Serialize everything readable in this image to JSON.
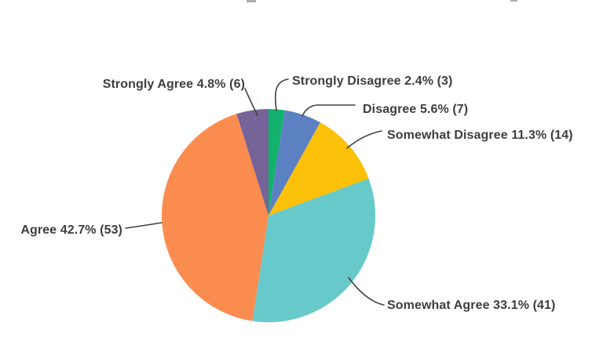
{
  "chart_data": {
    "type": "pie",
    "title": "",
    "legend_position": "none",
    "labels_style": "callout-leader-lines",
    "start_angle_deg": -90,
    "direction": "clockwise",
    "colors": {
      "label_text": "#3e3e40",
      "leader_line": "#414042",
      "background": "#ffffff"
    },
    "categories": [
      "Strongly Disagree",
      "Disagree",
      "Somewhat Disagree",
      "Somewhat Agree",
      "Agree",
      "Strongly Agree"
    ],
    "values": [
      2.4,
      5.6,
      11.3,
      33.1,
      42.7,
      4.8
    ],
    "counts": [
      3,
      7,
      14,
      41,
      53,
      6
    ],
    "segments": [
      {
        "key": "strongly-disagree",
        "label": "Strongly Disagree",
        "percent": "2.4%",
        "count": 3,
        "color": "#12b26e",
        "display": "Strongly Disagree 2.4% (3)"
      },
      {
        "key": "disagree",
        "label": "Disagree",
        "percent": "5.6%",
        "count": 7,
        "color": "#5b81c2",
        "display": "Disagree 5.6% (7)"
      },
      {
        "key": "somewhat-disagree",
        "label": "Somewhat Disagree",
        "percent": "11.3%",
        "count": 14,
        "color": "#fbc008",
        "display": "Somewhat Disagree 11.3% (14)"
      },
      {
        "key": "somewhat-agree",
        "label": "Somewhat Agree",
        "percent": "33.1%",
        "count": 41,
        "color": "#68c9ca",
        "display": "Somewhat Agree 33.1% (41)"
      },
      {
        "key": "agree",
        "label": "Agree",
        "percent": "42.7%",
        "count": 53,
        "color": "#fb8c50",
        "display": "Agree 42.7% (53)"
      },
      {
        "key": "strongly-agree",
        "label": "Strongly Agree",
        "percent": "4.8%",
        "count": 6,
        "color": "#766398",
        "display": "Strongly Agree 4.8% (6)"
      }
    ]
  }
}
